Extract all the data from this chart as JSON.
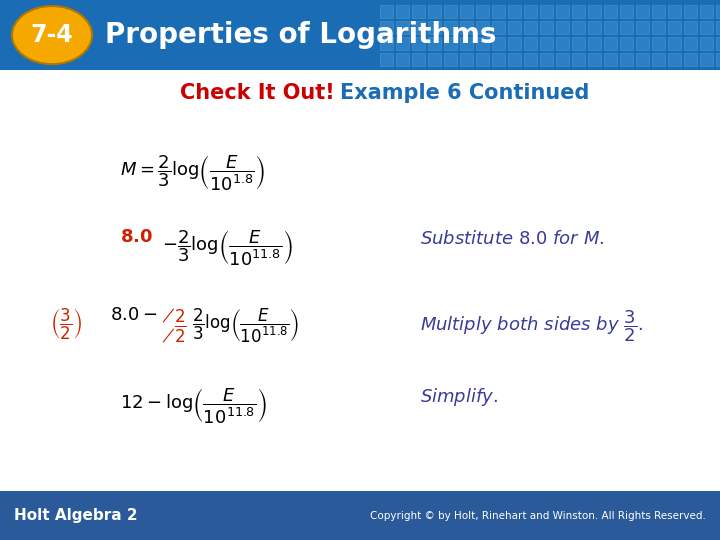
{
  "title_badge": "7-4",
  "title_text": "Properties of Logarithms",
  "header_bg_color": "#1a6cb5",
  "badge_color": "#f5a800",
  "check_it_out": "Check It Out!",
  "example_text": "Example 6 Continued",
  "check_color": "#cc0000",
  "example_color": "#1a6cb5",
  "body_bg": "#ffffff",
  "footer_bg": "#2a5a9a",
  "footer_left": "Holt Algebra 2",
  "footer_right": "Copyright © by Holt, Rinehart and Winston. All Rights Reserved.",
  "eq_color": "#000000",
  "note_color": "#3a3a99",
  "red_color": "#cc2200"
}
